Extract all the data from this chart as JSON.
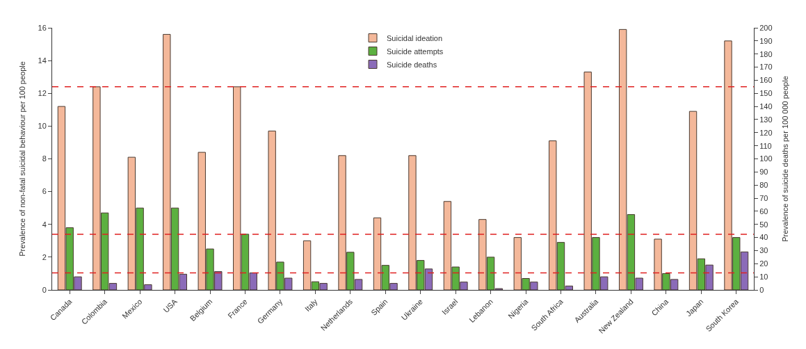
{
  "chart_data": {
    "type": "bar",
    "ylabel": "Prevalence of non-fatal suicidal behaviour per 100 people",
    "y2label": "Prevalence of suicide deaths per 100 000 people",
    "categories": [
      "Canada",
      "Colombia",
      "Mexico",
      "USA",
      "Belgium",
      "France",
      "Germany",
      "Italy",
      "Netherlands",
      "Spain",
      "Ukraine",
      "Israel",
      "Lebanon",
      "Nigeria",
      "South Africa",
      "Australia",
      "New Zealand",
      "China",
      "Japan",
      "South Korea"
    ],
    "series": [
      {
        "name": "Suicidal ideation",
        "color": "#f4b89a",
        "values": [
          11.2,
          12.4,
          8.1,
          15.6,
          8.4,
          12.4,
          9.7,
          3.0,
          8.2,
          4.4,
          8.2,
          5.4,
          4.3,
          3.2,
          9.1,
          13.3,
          15.9,
          3.1,
          10.9,
          15.2
        ]
      },
      {
        "name": "Suicide attempts",
        "color": "#5cb040",
        "values": [
          3.8,
          4.7,
          5.0,
          5.0,
          2.5,
          3.4,
          1.7,
          0.5,
          2.3,
          1.5,
          1.8,
          1.4,
          2.0,
          0.7,
          2.9,
          3.2,
          4.6,
          1.0,
          1.9,
          3.2
        ]
      },
      {
        "name": "Suicide deaths",
        "color": "#8b6bb8",
        "axis": "y2",
        "values": [
          10,
          5,
          4,
          12,
          14,
          13,
          9,
          5,
          8,
          5,
          16,
          6,
          1,
          6,
          3,
          10,
          9,
          8,
          19,
          29
        ]
      }
    ],
    "ylim": [
      0,
      16
    ],
    "yticks": [
      0,
      2,
      4,
      6,
      8,
      10,
      12,
      14,
      16
    ],
    "y2lim": [
      0,
      200
    ],
    "y2ticks": [
      0,
      10,
      20,
      30,
      40,
      50,
      60,
      70,
      80,
      90,
      100,
      110,
      120,
      130,
      140,
      150,
      160,
      170,
      180,
      190,
      200
    ],
    "ref_lines": [
      {
        "axis": "y",
        "value": 12.4,
        "color": "#e02020",
        "line_style": "dashed"
      },
      {
        "axis": "y",
        "value": 3.4,
        "color": "#e02020",
        "line_style": "dashed"
      },
      {
        "axis": "y2",
        "value": 13,
        "color": "#e02020",
        "line_style": "dashed"
      }
    ],
    "legend": "top"
  }
}
